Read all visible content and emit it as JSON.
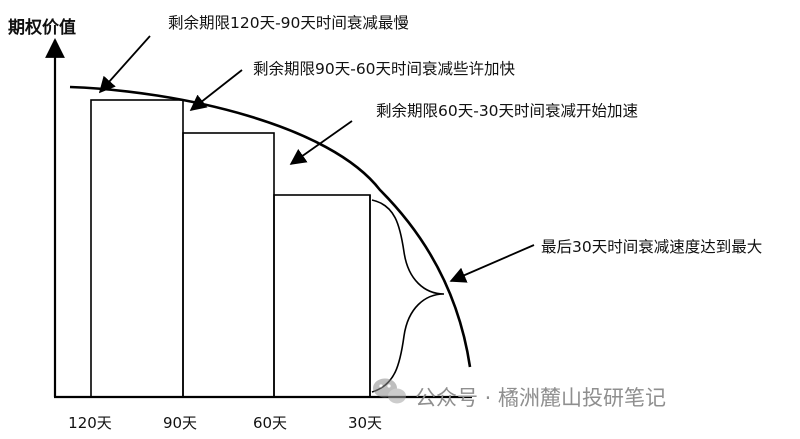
{
  "y_axis_label": "期权价值",
  "annotations": [
    "剩余期限120天-90天时间衰减最慢",
    "剩余期限90天-60天时间衰减些许加快",
    "剩余期限60天-30天时间衰减开始加速",
    "最后30天时间衰减速度达到最大"
  ],
  "x_ticks": [
    "120天",
    "90天",
    "60天",
    "30天"
  ],
  "watermark": "公众号 · 橘洲麓山投研笔记",
  "watermark_icon": "wechat-icon"
}
